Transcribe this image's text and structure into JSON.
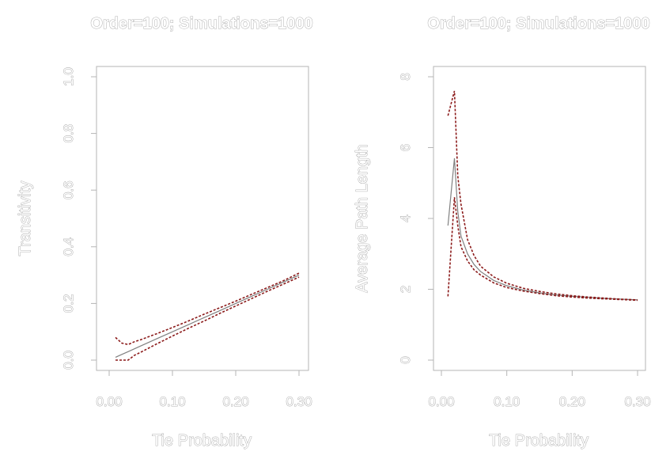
{
  "chart_data": [
    {
      "type": "line",
      "title": "Order=100; Simulations=1000",
      "xlabel": "Tie Probability",
      "ylabel": "Transitivity",
      "xlim": [
        0.0,
        0.3
      ],
      "ylim": [
        0.0,
        1.0
      ],
      "xticks": [
        "0.00",
        "0.10",
        "0.20",
        "0.30"
      ],
      "xtick_values": [
        0.0,
        0.1,
        0.2,
        0.3
      ],
      "yticks": [
        "0.0",
        "0.2",
        "0.4",
        "0.6",
        "0.8",
        "1.0"
      ],
      "ytick_values": [
        0.0,
        0.2,
        0.4,
        0.6,
        0.8,
        1.0
      ],
      "grid": false,
      "series": [
        {
          "color": "#808080",
          "style": "solid",
          "x": [
            0.01,
            0.02,
            0.03,
            0.04,
            0.05,
            0.075,
            0.1,
            0.125,
            0.15,
            0.175,
            0.2,
            0.225,
            0.25,
            0.275,
            0.3
          ],
          "y": [
            0.01,
            0.02,
            0.03,
            0.04,
            0.05,
            0.075,
            0.1,
            0.125,
            0.15,
            0.175,
            0.2,
            0.225,
            0.25,
            0.275,
            0.3
          ]
        },
        {
          "color": "#8b1a1a",
          "style": "dashed",
          "x": [
            0.01,
            0.02,
            0.03,
            0.04,
            0.05,
            0.075,
            0.1,
            0.125,
            0.15,
            0.175,
            0.2,
            0.225,
            0.25,
            0.275,
            0.3
          ],
          "y": [
            0.08,
            0.06,
            0.055,
            0.065,
            0.072,
            0.093,
            0.115,
            0.138,
            0.162,
            0.185,
            0.208,
            0.232,
            0.256,
            0.28,
            0.307
          ]
        },
        {
          "color": "#8b1a1a",
          "style": "dashed",
          "x": [
            0.01,
            0.02,
            0.03,
            0.04,
            0.05,
            0.075,
            0.1,
            0.125,
            0.15,
            0.175,
            0.2,
            0.225,
            0.25,
            0.275,
            0.3
          ],
          "y": [
            0.0,
            0.0,
            0.0,
            0.017,
            0.028,
            0.057,
            0.085,
            0.112,
            0.138,
            0.165,
            0.191,
            0.217,
            0.243,
            0.268,
            0.293
          ]
        }
      ]
    },
    {
      "type": "line",
      "title": "Order=100; Simulations=1000",
      "xlabel": "Tie Probability",
      "ylabel": "Average Path Length",
      "xlim": [
        0.0,
        0.3
      ],
      "ylim": [
        0,
        8
      ],
      "xticks": [
        "0.00",
        "0.10",
        "0.20",
        "0.30"
      ],
      "xtick_values": [
        0.0,
        0.1,
        0.2,
        0.3
      ],
      "yticks": [
        "0",
        "2",
        "4",
        "6",
        "8"
      ],
      "ytick_values": [
        0,
        2,
        4,
        6,
        8
      ],
      "grid": false,
      "series": [
        {
          "color": "#808080",
          "style": "solid",
          "x": [
            0.01,
            0.02,
            0.025,
            0.03,
            0.04,
            0.05,
            0.06,
            0.08,
            0.1,
            0.125,
            0.15,
            0.175,
            0.2,
            0.225,
            0.25,
            0.275,
            0.3
          ],
          "y": [
            3.8,
            5.7,
            4.2,
            3.5,
            3.0,
            2.7,
            2.5,
            2.25,
            2.1,
            1.98,
            1.9,
            1.84,
            1.8,
            1.77,
            1.74,
            1.72,
            1.7
          ]
        },
        {
          "color": "#8b1a1a",
          "style": "dashed",
          "x": [
            0.01,
            0.02,
            0.025,
            0.03,
            0.04,
            0.05,
            0.06,
            0.08,
            0.1,
            0.125,
            0.15,
            0.175,
            0.2,
            0.225,
            0.25,
            0.275,
            0.3
          ],
          "y": [
            6.9,
            7.6,
            5.2,
            4.4,
            3.4,
            2.95,
            2.65,
            2.35,
            2.17,
            2.03,
            1.94,
            1.87,
            1.82,
            1.78,
            1.75,
            1.72,
            1.7
          ]
        },
        {
          "color": "#8b1a1a",
          "style": "dashed",
          "x": [
            0.01,
            0.02,
            0.025,
            0.03,
            0.04,
            0.05,
            0.06,
            0.08,
            0.1,
            0.125,
            0.15,
            0.175,
            0.2,
            0.225,
            0.25,
            0.275,
            0.3
          ],
          "y": [
            1.8,
            4.6,
            3.8,
            3.2,
            2.8,
            2.55,
            2.4,
            2.18,
            2.05,
            1.95,
            1.88,
            1.82,
            1.78,
            1.75,
            1.73,
            1.71,
            1.69
          ]
        }
      ]
    }
  ]
}
